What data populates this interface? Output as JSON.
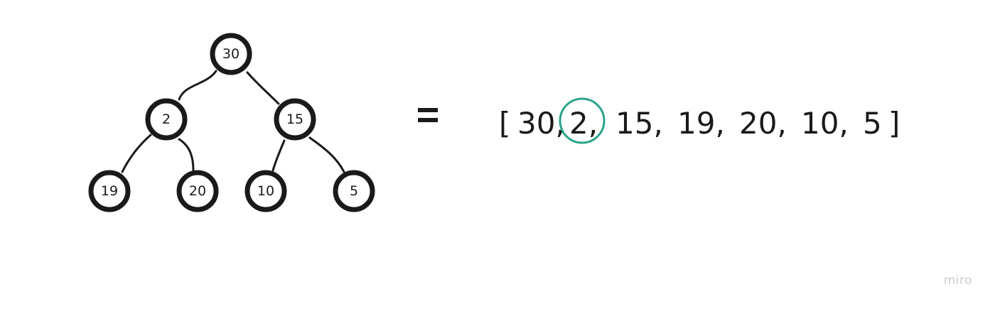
{
  "tree": {
    "nodes": [
      {
        "id": "root",
        "label": "30"
      },
      {
        "id": "left",
        "label": "2"
      },
      {
        "id": "right",
        "label": "15"
      },
      {
        "id": "left-left",
        "label": "19"
      },
      {
        "id": "left-right",
        "label": "20"
      },
      {
        "id": "right-left",
        "label": "10"
      },
      {
        "id": "right-right",
        "label": "5"
      }
    ]
  },
  "array": {
    "open_bracket": "[",
    "close_bracket": "]",
    "items": [
      "30,",
      "2,",
      "15,",
      "19,",
      "20,",
      "10,",
      "5"
    ],
    "highlighted_item": "2,"
  },
  "colors": {
    "ink": "#1a1a1a",
    "highlight": "#2aa38b",
    "watermark": "#c9ccd1"
  },
  "watermark": "miro"
}
